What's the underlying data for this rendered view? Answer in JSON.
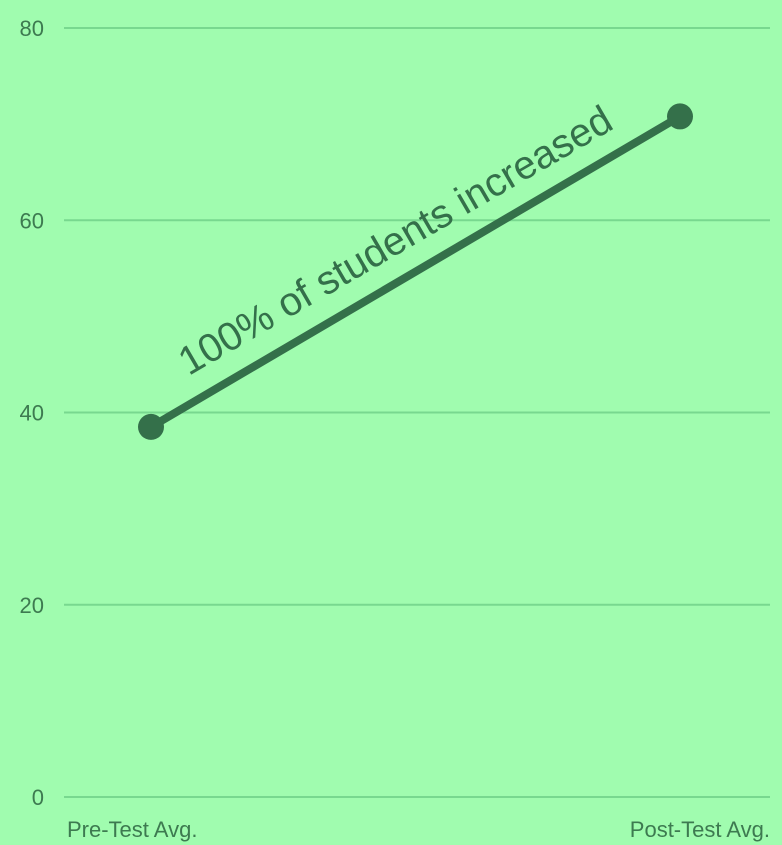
{
  "chart_data": {
    "type": "line",
    "categories": [
      "Pre-Test Avg.",
      "Post-Test Avg."
    ],
    "series": [
      {
        "values": [
          38.5,
          70.8
        ]
      }
    ],
    "annotation": "100% of students increased",
    "yticks": [
      0,
      20,
      40,
      60,
      80
    ],
    "ylim": [
      0,
      80
    ],
    "grid": true,
    "legend": "none"
  },
  "colors": {
    "background": "#a0fcaf",
    "gridline": "#78d88f",
    "text": "#3d7a50",
    "line": "#34704a"
  }
}
